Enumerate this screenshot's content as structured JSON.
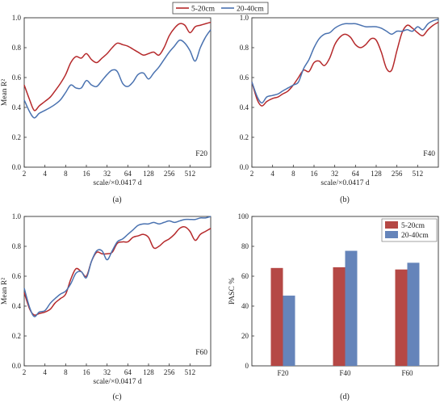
{
  "colors": {
    "red": "#b5292b",
    "blue": "#4a72b0",
    "bar_red": "#b54845",
    "bar_blue": "#6584ba"
  },
  "top_legend": {
    "items": [
      "5-20cm",
      "20-40cm"
    ]
  },
  "chart_data": [
    {
      "type": "line",
      "panel_label": "(a)",
      "annotation": "F20",
      "xlabel": "scale/×0.0417 d",
      "ylabel": "Mean R²",
      "xscale": "log2",
      "xlim": [
        2,
        1024
      ],
      "ylim": [
        0,
        1.0
      ],
      "xticks": [
        "2",
        "4",
        "8",
        "16",
        "32",
        "64",
        "128",
        "256",
        "512"
      ],
      "yticks": [
        "0.0",
        "0.2",
        "0.4",
        "0.6",
        "0.8",
        "1.0"
      ],
      "x": [
        2,
        2.4,
        2.8,
        3.3,
        4,
        4.8,
        5.6,
        6.7,
        8,
        9.5,
        11.3,
        13.5,
        16,
        19,
        22.6,
        27,
        32,
        38,
        45,
        54,
        64,
        76,
        90,
        108,
        128,
        152,
        181,
        215,
        256,
        304,
        362,
        431,
        512,
        609,
        724,
        861,
        1024
      ],
      "series": [
        {
          "name": "5-20cm",
          "values": [
            0.55,
            0.45,
            0.38,
            0.41,
            0.44,
            0.47,
            0.51,
            0.56,
            0.62,
            0.7,
            0.74,
            0.73,
            0.76,
            0.72,
            0.7,
            0.73,
            0.76,
            0.8,
            0.83,
            0.82,
            0.81,
            0.79,
            0.77,
            0.75,
            0.76,
            0.77,
            0.75,
            0.8,
            0.88,
            0.93,
            0.96,
            0.95,
            0.9,
            0.94,
            0.95,
            0.96,
            0.97
          ]
        },
        {
          "name": "20-40cm",
          "values": [
            0.45,
            0.37,
            0.33,
            0.36,
            0.38,
            0.4,
            0.42,
            0.45,
            0.5,
            0.55,
            0.53,
            0.53,
            0.58,
            0.55,
            0.54,
            0.58,
            0.62,
            0.65,
            0.64,
            0.56,
            0.54,
            0.57,
            0.62,
            0.63,
            0.59,
            0.63,
            0.67,
            0.72,
            0.77,
            0.81,
            0.85,
            0.83,
            0.78,
            0.71,
            0.8,
            0.87,
            0.92
          ]
        }
      ]
    },
    {
      "type": "line",
      "panel_label": "(b)",
      "annotation": "F40",
      "xlabel": "scale/×0.0417 d",
      "ylabel": "",
      "xscale": "log2",
      "xlim": [
        2,
        1024
      ],
      "ylim": [
        0,
        1.0
      ],
      "xticks": [
        "2",
        "4",
        "8",
        "16",
        "32",
        "64",
        "128",
        "256",
        "512"
      ],
      "yticks": [
        "0.0",
        "0.2",
        "0.4",
        "0.6",
        "0.8",
        "1.0"
      ],
      "x": [
        2,
        2.4,
        2.8,
        3.3,
        4,
        4.8,
        5.6,
        6.7,
        8,
        9.5,
        11.3,
        13.5,
        16,
        19,
        22.6,
        27,
        32,
        38,
        45,
        54,
        64,
        76,
        90,
        108,
        128,
        152,
        181,
        215,
        256,
        304,
        362,
        431,
        512,
        609,
        724,
        861,
        1024
      ],
      "series": [
        {
          "name": "5-20cm",
          "values": [
            0.57,
            0.45,
            0.41,
            0.44,
            0.46,
            0.47,
            0.49,
            0.51,
            0.55,
            0.6,
            0.65,
            0.64,
            0.7,
            0.71,
            0.68,
            0.73,
            0.82,
            0.87,
            0.89,
            0.87,
            0.82,
            0.8,
            0.82,
            0.86,
            0.85,
            0.77,
            0.66,
            0.65,
            0.78,
            0.9,
            0.95,
            0.93,
            0.9,
            0.88,
            0.92,
            0.95,
            0.97
          ]
        },
        {
          "name": "20-40cm",
          "values": [
            0.57,
            0.47,
            0.43,
            0.47,
            0.48,
            0.49,
            0.51,
            0.53,
            0.55,
            0.57,
            0.66,
            0.72,
            0.8,
            0.86,
            0.89,
            0.9,
            0.93,
            0.95,
            0.96,
            0.96,
            0.96,
            0.95,
            0.94,
            0.94,
            0.94,
            0.93,
            0.91,
            0.89,
            0.91,
            0.91,
            0.92,
            0.91,
            0.94,
            0.92,
            0.96,
            0.98,
            0.99
          ]
        }
      ]
    },
    {
      "type": "line",
      "panel_label": "(c)",
      "annotation": "F60",
      "xlabel": "scale/×0.0417 d",
      "ylabel": "Mean R²",
      "xscale": "log2",
      "xlim": [
        2,
        1024
      ],
      "ylim": [
        0,
        1.0
      ],
      "xticks": [
        "2",
        "4",
        "8",
        "16",
        "32",
        "64",
        "128",
        "256",
        "512"
      ],
      "yticks": [
        "0.0",
        "0.2",
        "0.4",
        "0.6",
        "0.8",
        "1.0"
      ],
      "x": [
        2,
        2.4,
        2.8,
        3.3,
        4,
        4.8,
        5.6,
        6.7,
        8,
        9.5,
        11.3,
        13.5,
        16,
        19,
        22.6,
        27,
        32,
        38,
        45,
        54,
        64,
        76,
        90,
        108,
        128,
        152,
        181,
        215,
        256,
        304,
        362,
        431,
        512,
        609,
        724,
        861,
        1024
      ],
      "series": [
        {
          "name": "5-20cm",
          "values": [
            0.49,
            0.38,
            0.34,
            0.35,
            0.36,
            0.38,
            0.42,
            0.45,
            0.48,
            0.58,
            0.65,
            0.63,
            0.6,
            0.7,
            0.76,
            0.75,
            0.75,
            0.76,
            0.82,
            0.83,
            0.83,
            0.86,
            0.87,
            0.88,
            0.86,
            0.79,
            0.8,
            0.83,
            0.85,
            0.88,
            0.92,
            0.93,
            0.9,
            0.84,
            0.88,
            0.9,
            0.92
          ]
        },
        {
          "name": "20-40cm",
          "values": [
            0.52,
            0.39,
            0.33,
            0.36,
            0.37,
            0.42,
            0.45,
            0.48,
            0.5,
            0.55,
            0.62,
            0.63,
            0.59,
            0.7,
            0.77,
            0.77,
            0.71,
            0.77,
            0.83,
            0.85,
            0.88,
            0.91,
            0.94,
            0.95,
            0.95,
            0.96,
            0.95,
            0.96,
            0.97,
            0.96,
            0.97,
            0.98,
            0.98,
            0.98,
            0.99,
            0.99,
            1.0
          ]
        }
      ]
    },
    {
      "type": "bar",
      "panel_label": "(d)",
      "xlabel": "",
      "ylabel": "PASC %",
      "ylim": [
        0,
        100
      ],
      "yticks": [
        "0",
        "20",
        "40",
        "60",
        "80",
        "100"
      ],
      "categories": [
        "F20",
        "F40",
        "F60"
      ],
      "series": [
        {
          "name": "5-20cm",
          "values": [
            65.5,
            66.0,
            64.5
          ]
        },
        {
          "name": "20-40cm",
          "values": [
            47.0,
            77.0,
            69.0
          ]
        }
      ]
    }
  ]
}
